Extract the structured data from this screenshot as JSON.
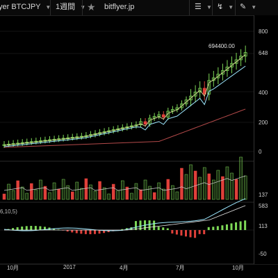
{
  "toolbar": {
    "symbol_label": "yer BTCJPY",
    "interval_label": "1週間",
    "site_label": "bitflyer.jp",
    "star_icon": "star-icon",
    "compare_icon": "compare-icon",
    "indicator_icon": "indicator-icon",
    "draw_icon": "pencil-icon"
  },
  "price_panel": {
    "last_price_label": "694400.00",
    "right_axis_ticks": [
      "800",
      "648",
      "400",
      "200",
      "0"
    ]
  },
  "volume_panel": {
    "right_axis_ticks": [
      "137"
    ]
  },
  "macd_panel": {
    "params_label": "6,10,5)",
    "right_axis_ticks": [
      "583",
      "113",
      "-50"
    ]
  },
  "x_axis_labels": [
    "10月",
    "2017",
    "4月",
    "7月",
    "10月"
  ],
  "colors": {
    "up": "#7ed957",
    "down": "#e0403a",
    "ma_fast": "#9ee8ff",
    "ma_slow": "#b44a4a",
    "background": "#000000"
  },
  "chart_data": {
    "type": "candlestick",
    "price_range": [
      0,
      800000
    ],
    "last_price": 694400,
    "note": "Weekly BTCJPY candles from Oct 2016 to ~Nov 2017; moving averages and volume/MACD sub-panels shown."
  }
}
